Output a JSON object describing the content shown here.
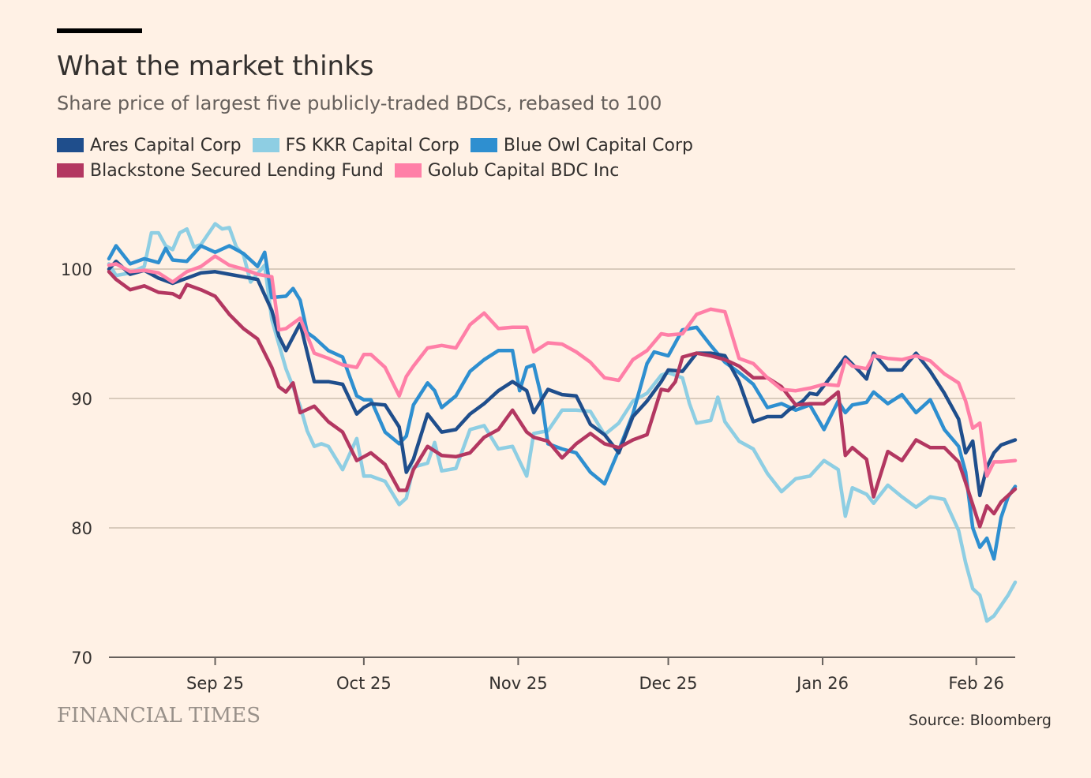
{
  "header": {
    "title": "What the market thinks",
    "subtitle": "Share price of largest five publicly-traded BDCs, rebased to 100"
  },
  "footer": {
    "logo_text": "FINANCIAL TIMES",
    "source": "Source: Bloomberg"
  },
  "chart_data": {
    "type": "line",
    "title": "What the market thinks",
    "subtitle": "Share price of largest five publicly-traded BDCs, rebased to 100",
    "xlabel": "",
    "ylabel": "",
    "ylim": [
      70,
      105
    ],
    "yticks": [
      70,
      80,
      90,
      100
    ],
    "grid": true,
    "xlim": [
      0,
      128
    ],
    "xticks": [
      {
        "label": "Sep 25",
        "pos": 15
      },
      {
        "label": "Oct 25",
        "pos": 36
      },
      {
        "label": "Nov 25",
        "pos": 57.8
      },
      {
        "label": "Dec 25",
        "pos": 79
      },
      {
        "label": "Jan 26",
        "pos": 100.8
      },
      {
        "label": "Feb 26",
        "pos": 122.5
      }
    ],
    "series": [
      {
        "name": "Ares Capital Corp",
        "color": "#1f4e8c",
        "x": [
          0,
          1,
          3,
          5,
          7,
          9,
          11,
          13,
          15,
          17,
          19,
          21,
          23,
          24,
          25,
          27,
          29,
          31,
          33,
          35,
          36,
          37,
          39,
          41,
          42,
          43,
          45,
          47,
          49,
          51,
          53,
          55,
          57,
          59,
          60,
          62,
          64,
          66,
          68,
          70,
          72,
          74,
          76,
          78,
          79,
          81,
          83,
          85,
          87,
          89,
          91,
          93,
          95,
          96,
          98,
          99,
          100,
          102,
          104,
          106,
          107,
          108,
          110,
          112,
          114,
          116,
          118,
          120,
          121,
          122,
          123,
          124,
          125,
          126,
          128
        ],
        "y": [
          100,
          100.6,
          99.6,
          99.9,
          99.3,
          98.9,
          99.3,
          99.7,
          99.8,
          99.6,
          99.4,
          99.2,
          96.8,
          94.8,
          93.7,
          95.8,
          91.3,
          91.3,
          91.1,
          88.8,
          89.3,
          89.6,
          89.5,
          87.8,
          84.3,
          85.3,
          88.8,
          87.4,
          87.6,
          88.8,
          89.6,
          90.6,
          91.3,
          90.6,
          88.9,
          90.7,
          90.3,
          90.2,
          88.0,
          87.2,
          85.8,
          88.6,
          89.8,
          91.3,
          92.2,
          92.1,
          93.5,
          93.5,
          93.3,
          91.3,
          88.2,
          88.6,
          88.6,
          89.1,
          89.8,
          90.4,
          90.3,
          91.7,
          93.2,
          92.1,
          91.5,
          93.5,
          92.2,
          92.2,
          93.5,
          92.1,
          90.4,
          88.4,
          85.8,
          86.7,
          82.5,
          84.7,
          85.8,
          86.4,
          86.8
        ]
      },
      {
        "name": "FS KKR Capital Corp",
        "color": "#8ecee3",
        "x": [
          0,
          1,
          3,
          5,
          6,
          7,
          8,
          9,
          10,
          11,
          12,
          13,
          15,
          16,
          17,
          18,
          19,
          20,
          22,
          23,
          25,
          26,
          27,
          28,
          29,
          30,
          31,
          33,
          35,
          36,
          37,
          39,
          41,
          42,
          43,
          45,
          46,
          47,
          49,
          51,
          53,
          55,
          57,
          59,
          60,
          62,
          64,
          66,
          68,
          70,
          72,
          74,
          76,
          78,
          79,
          81,
          82,
          83,
          85,
          86,
          87,
          89,
          91,
          93,
          95,
          97,
          99,
          101,
          103,
          104,
          105,
          107,
          108,
          110,
          112,
          114,
          116,
          118,
          120,
          121,
          122,
          123,
          124,
          125,
          127,
          128
        ],
        "y": [
          100.4,
          99.5,
          99.7,
          100.2,
          102.8,
          102.8,
          101.8,
          101.5,
          102.8,
          103.1,
          101.7,
          101.9,
          103.5,
          103.1,
          103.2,
          101.7,
          101.1,
          99.0,
          100.3,
          96.1,
          92.3,
          90.9,
          89.4,
          87.5,
          86.3,
          86.5,
          86.3,
          84.5,
          86.9,
          84.0,
          84.0,
          83.6,
          81.8,
          82.3,
          84.7,
          85.0,
          86.6,
          84.4,
          84.6,
          87.6,
          87.9,
          86.1,
          86.3,
          84.0,
          87.3,
          87.5,
          89.1,
          89.1,
          89.0,
          87.2,
          88.1,
          89.8,
          90.4,
          91.8,
          92.0,
          91.6,
          89.6,
          88.1,
          88.3,
          90.1,
          88.2,
          86.7,
          86.1,
          84.2,
          82.8,
          83.8,
          84.0,
          85.2,
          84.5,
          80.9,
          83.1,
          82.6,
          81.9,
          83.3,
          82.4,
          81.6,
          82.4,
          82.2,
          79.8,
          77.3,
          75.3,
          74.8,
          72.8,
          73.2,
          74.8,
          75.8
        ]
      },
      {
        "name": "Blue Owl Capital Corp",
        "color": "#2e8fd0",
        "x": [
          0,
          1,
          3,
          5,
          7,
          8,
          9,
          11,
          13,
          15,
          17,
          19,
          21,
          22,
          23,
          25,
          26,
          27,
          28,
          29,
          31,
          33,
          35,
          36,
          37,
          39,
          41,
          42,
          43,
          45,
          46,
          47,
          49,
          51,
          53,
          55,
          57,
          58,
          59,
          60,
          61,
          62,
          64,
          66,
          68,
          70,
          72,
          74,
          76,
          77,
          79,
          81,
          83,
          85,
          87,
          89,
          91,
          93,
          95,
          97,
          99,
          101,
          103,
          104,
          105,
          107,
          108,
          110,
          112,
          114,
          116,
          118,
          120,
          121,
          122,
          123,
          124,
          125,
          126,
          127,
          128
        ],
        "y": [
          100.8,
          101.8,
          100.4,
          100.8,
          100.5,
          101.6,
          100.7,
          100.6,
          101.8,
          101.3,
          101.8,
          101.2,
          100.2,
          101.3,
          97.8,
          97.9,
          98.5,
          97.6,
          95.1,
          94.7,
          93.7,
          93.2,
          90.2,
          89.9,
          89.9,
          87.4,
          86.5,
          87.1,
          89.5,
          91.2,
          90.6,
          89.3,
          90.2,
          92.1,
          93.0,
          93.7,
          93.7,
          90.6,
          92.4,
          92.6,
          90.3,
          86.5,
          86.1,
          85.8,
          84.3,
          83.4,
          86.0,
          88.8,
          92.7,
          93.6,
          93.3,
          95.3,
          95.5,
          94.1,
          92.8,
          92.0,
          91.1,
          89.3,
          89.6,
          89.1,
          89.5,
          87.6,
          89.8,
          88.9,
          89.5,
          89.7,
          90.5,
          89.6,
          90.3,
          88.9,
          89.9,
          87.6,
          86.3,
          84.3,
          80.0,
          78.5,
          79.2,
          77.6,
          80.8,
          82.4,
          83.2
        ]
      },
      {
        "name": "Blackstone Secured Lending Fund",
        "color": "#b33761",
        "x": [
          0,
          1,
          3,
          5,
          7,
          9,
          10,
          11,
          13,
          15,
          17,
          19,
          21,
          23,
          24,
          25,
          26,
          27,
          29,
          31,
          33,
          35,
          36,
          37,
          39,
          41,
          42,
          43,
          45,
          47,
          49,
          51,
          53,
          55,
          57,
          59,
          60,
          62,
          64,
          66,
          68,
          70,
          72,
          74,
          76,
          78,
          79,
          80,
          81,
          83,
          85,
          87,
          89,
          91,
          93,
          95,
          97,
          99,
          101,
          103,
          104,
          105,
          107,
          108,
          110,
          112,
          114,
          116,
          118,
          120,
          121,
          122,
          123,
          124,
          125,
          126,
          128
        ],
        "y": [
          99.8,
          99.2,
          98.4,
          98.7,
          98.2,
          98.1,
          97.8,
          98.8,
          98.4,
          97.9,
          96.5,
          95.4,
          94.6,
          92.4,
          90.9,
          90.5,
          91.2,
          88.9,
          89.4,
          88.2,
          87.4,
          85.2,
          85.5,
          85.8,
          84.9,
          82.9,
          82.9,
          84.5,
          86.3,
          85.6,
          85.5,
          85.8,
          87.0,
          87.6,
          89.1,
          87.4,
          87.0,
          86.7,
          85.4,
          86.5,
          87.3,
          86.5,
          86.2,
          86.8,
          87.2,
          90.7,
          90.6,
          91.3,
          93.2,
          93.5,
          93.3,
          93.0,
          92.5,
          91.6,
          91.6,
          90.9,
          89.5,
          89.6,
          89.6,
          90.5,
          85.6,
          86.2,
          85.3,
          82.4,
          85.9,
          85.2,
          86.8,
          86.2,
          86.2,
          85.1,
          83.5,
          81.8,
          80.1,
          81.7,
          81.1,
          82.0,
          83.0
        ]
      },
      {
        "name": "Golub Capital BDC Inc",
        "color": "#ff7fa7",
        "x": [
          0,
          1,
          3,
          5,
          7,
          9,
          11,
          13,
          15,
          17,
          19,
          21,
          23,
          24,
          25,
          27,
          29,
          31,
          33,
          35,
          36,
          37,
          39,
          41,
          42,
          43,
          45,
          47,
          49,
          51,
          53,
          55,
          57,
          59,
          60,
          62,
          64,
          66,
          68,
          70,
          72,
          74,
          76,
          78,
          79,
          81,
          83,
          85,
          87,
          89,
          91,
          93,
          95,
          97,
          99,
          101,
          103,
          104,
          105,
          107,
          108,
          110,
          112,
          114,
          116,
          118,
          120,
          121,
          122,
          123,
          124,
          125,
          126,
          128
        ],
        "y": [
          100.3,
          100.4,
          99.8,
          99.9,
          99.7,
          99.0,
          99.8,
          100.2,
          101.0,
          100.3,
          100.0,
          99.6,
          99.4,
          95.3,
          95.4,
          96.2,
          93.5,
          93.1,
          92.6,
          92.4,
          93.4,
          93.4,
          92.4,
          90.2,
          91.7,
          92.5,
          93.9,
          94.1,
          93.9,
          95.7,
          96.6,
          95.4,
          95.5,
          95.5,
          93.6,
          94.3,
          94.2,
          93.6,
          92.8,
          91.6,
          91.4,
          93.0,
          93.7,
          95.0,
          94.9,
          95.0,
          96.5,
          96.9,
          96.7,
          93.1,
          92.7,
          91.6,
          90.7,
          90.6,
          90.8,
          91.1,
          91.0,
          93.0,
          92.5,
          92.3,
          93.3,
          93.1,
          93.0,
          93.3,
          92.9,
          91.9,
          91.2,
          89.8,
          87.7,
          88.1,
          84.0,
          85.1,
          85.1,
          85.2
        ]
      }
    ]
  }
}
